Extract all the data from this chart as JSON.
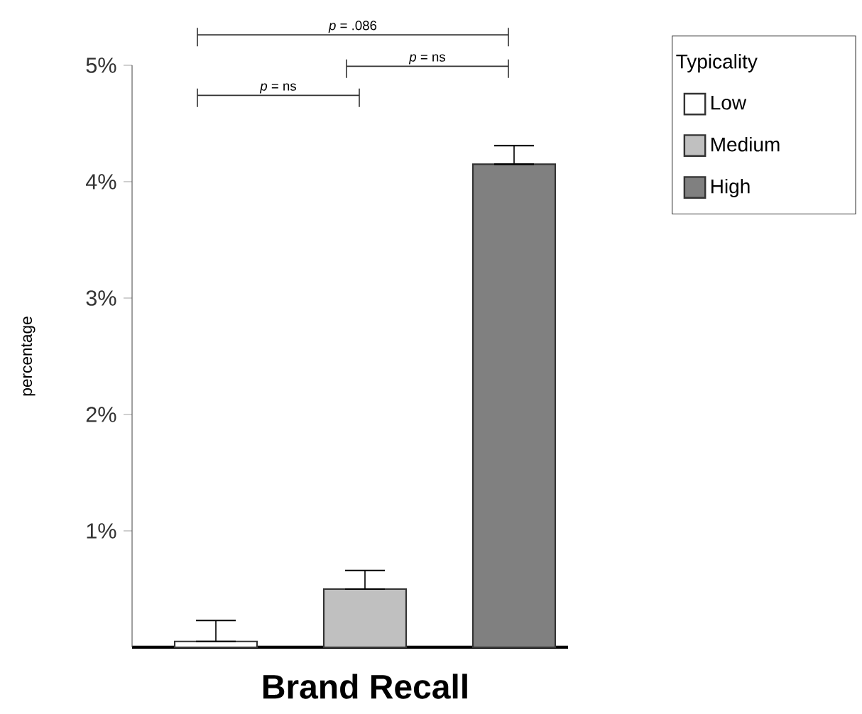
{
  "chart_data": {
    "type": "bar",
    "categories": [
      null,
      null,
      null
    ],
    "xlabel": "Brand Recall",
    "ylabel": "percentage",
    "legend_title": "Typicality",
    "legend": "right",
    "stacked": true,
    "series": [
      {
        "name": "Low",
        "color": "#ffffff",
        "values": [
          0.05,
          null,
          null
        ],
        "errors": [
          [
            0.05,
            0.23
          ],
          null,
          null
        ]
      },
      {
        "name": "Medium",
        "color": "#c0c0c0",
        "values": [
          null,
          0.5,
          null
        ],
        "errors": [
          null,
          [
            0.5,
            0.66
          ],
          null
        ]
      },
      {
        "name": "High",
        "color": "#808080",
        "values": [
          null,
          null,
          4.15
        ],
        "errors": [
          null,
          null,
          [
            4.15,
            4.31
          ]
        ]
      }
    ],
    "ylim": [
      0,
      5
    ],
    "yticks": [
      {
        "value": 1,
        "label": "1%"
      },
      {
        "value": 2,
        "label": "2%"
      },
      {
        "value": 3,
        "label": "3%"
      },
      {
        "value": 4,
        "label": "4%"
      },
      {
        "value": 5,
        "label": "5%"
      }
    ],
    "annotations": [
      "*p* = .086",
      "*p* = ns",
      "*p* = ns"
    ],
    "grid": false
  }
}
